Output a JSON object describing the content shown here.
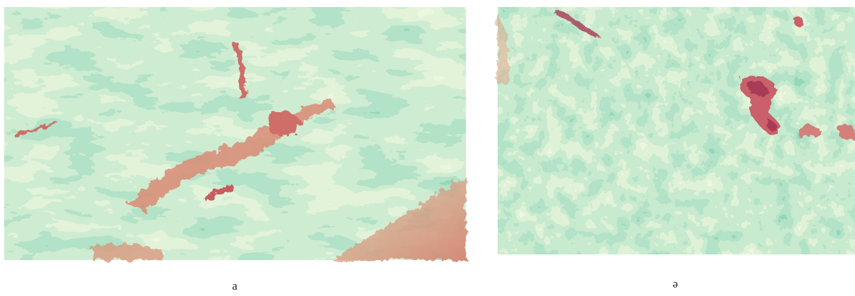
{
  "panels": [
    {
      "caption": "a"
    },
    {
      "caption": "ə"
    }
  ]
}
